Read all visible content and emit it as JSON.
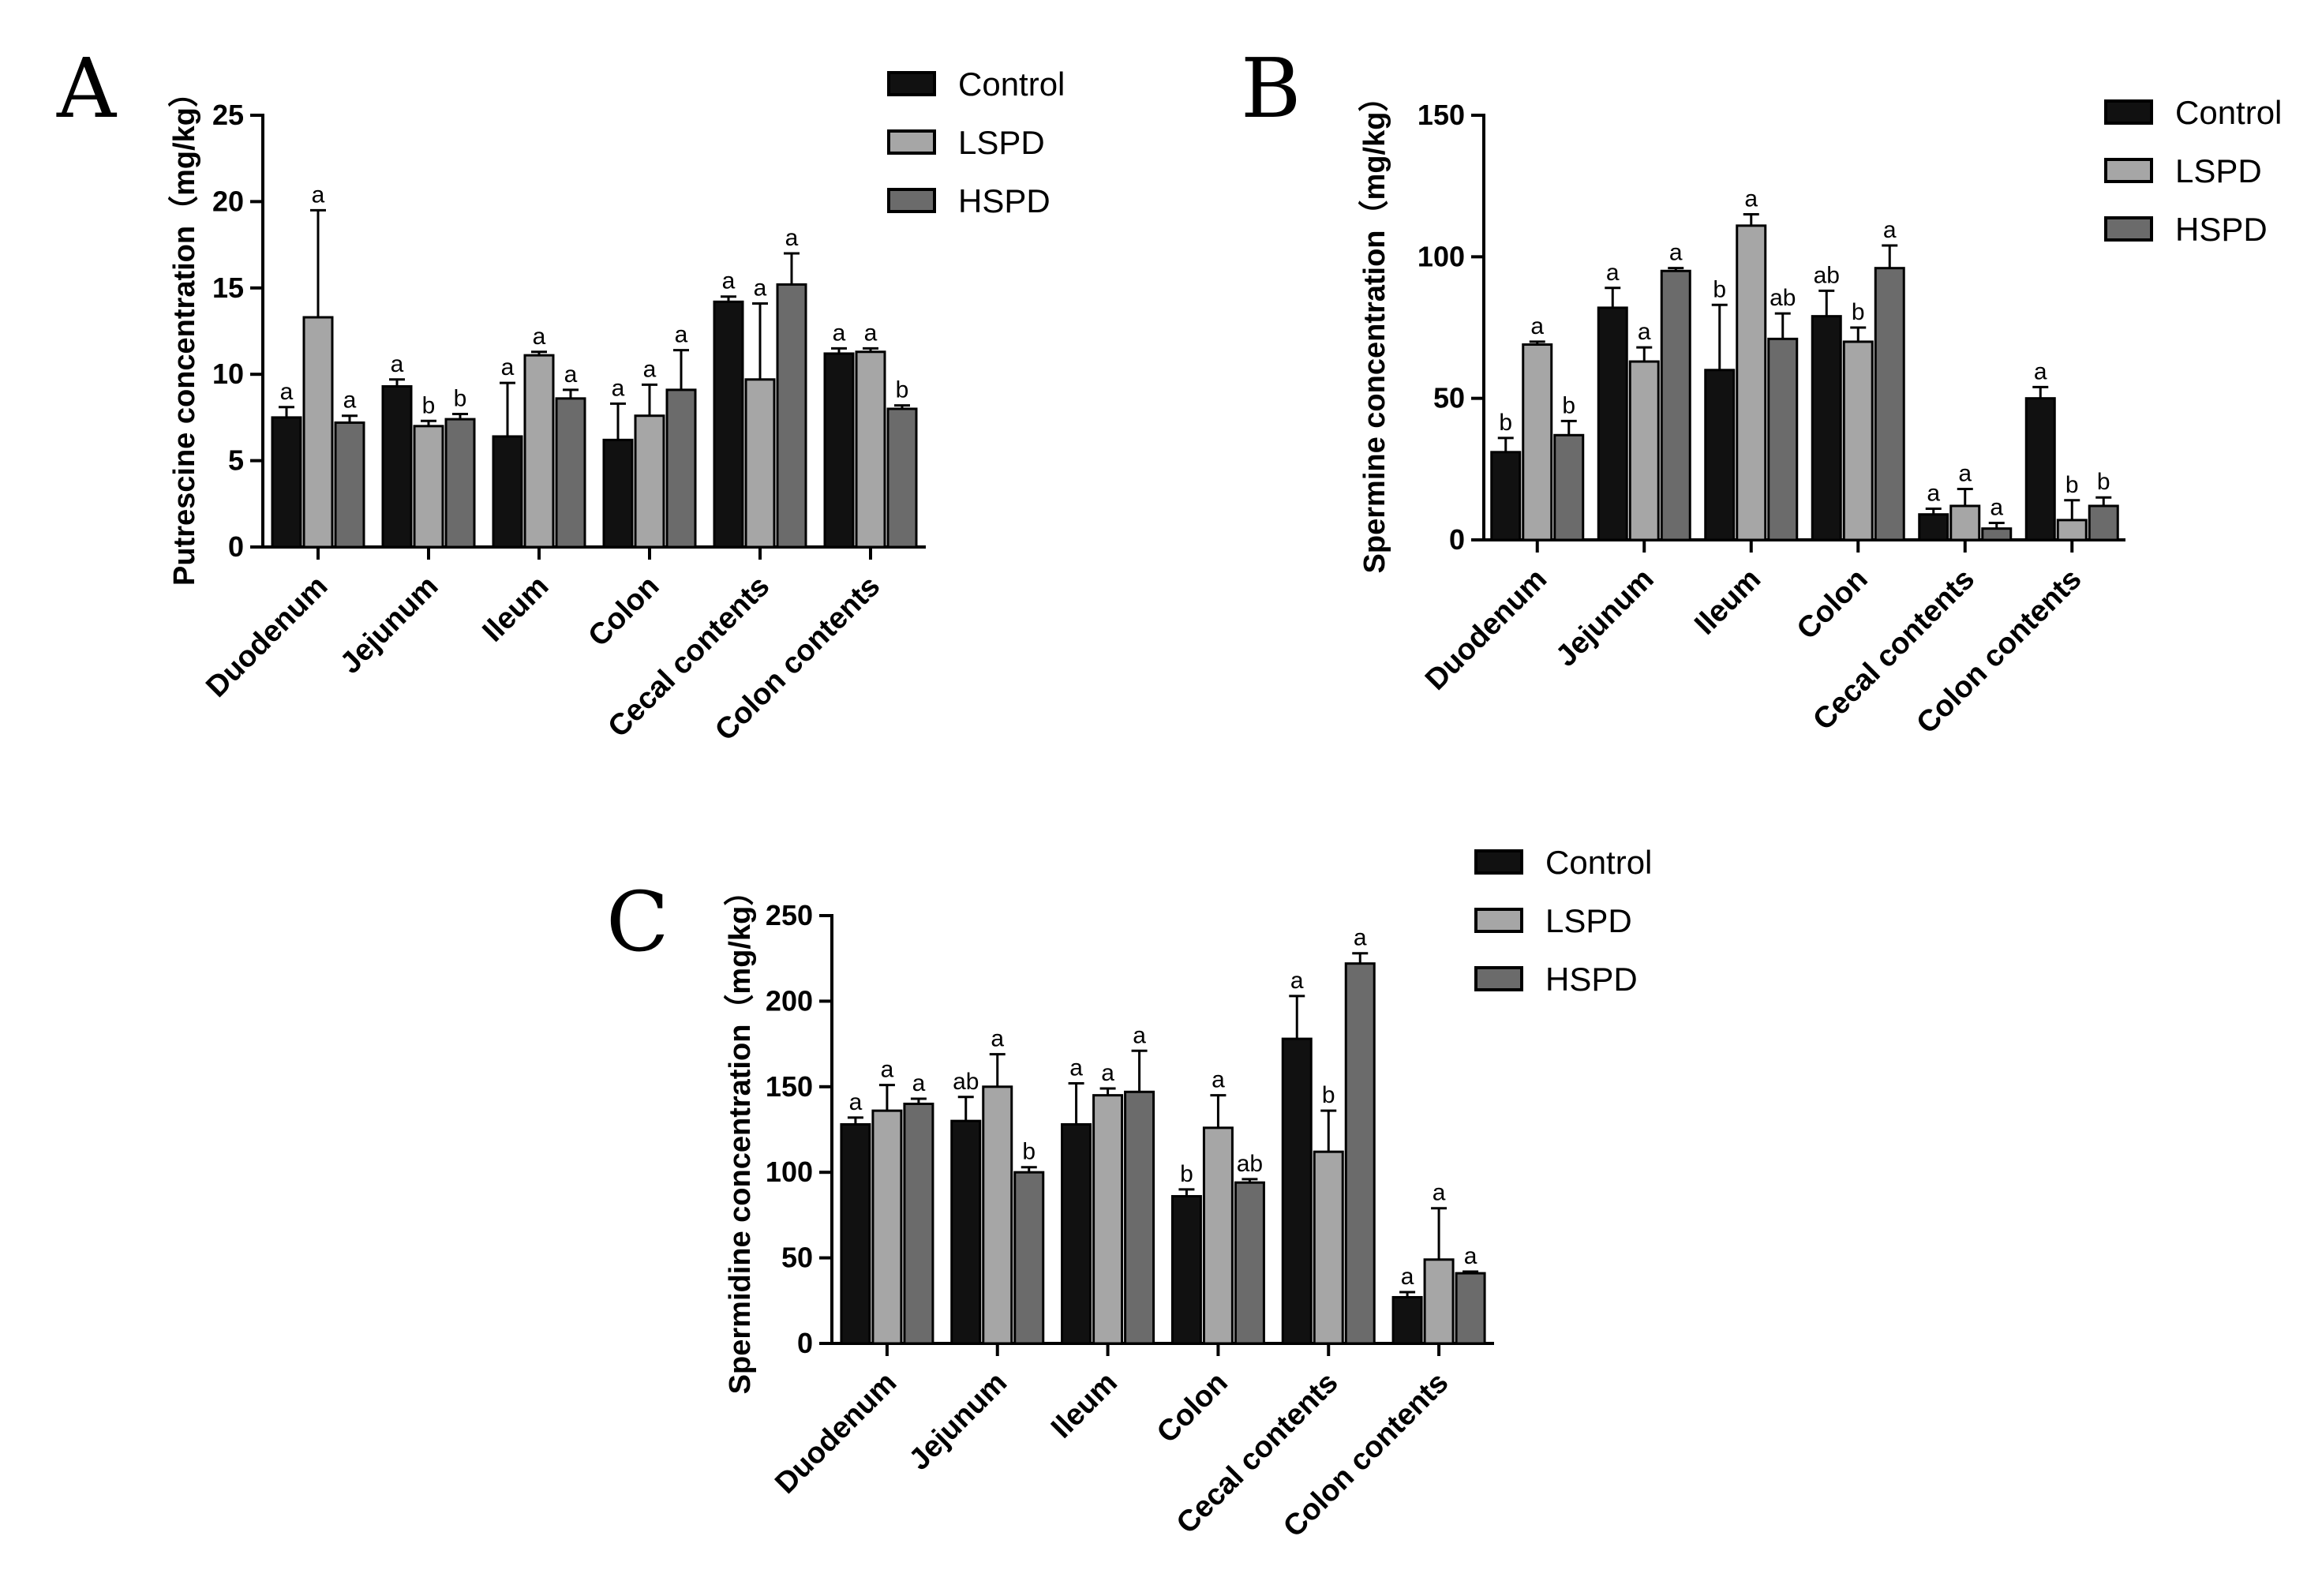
{
  "legend_labels": [
    "Control",
    "LSPD",
    "HSPD"
  ],
  "colors": {
    "Control": "#111111",
    "LSPD": "#a6a6a6",
    "HSPD": "#6b6b6b",
    "axis": "#000000"
  },
  "chart_data": [
    {
      "panel": "A",
      "type": "bar",
      "ylabel": "Putrescine concentration（mg/kg）",
      "ylim": [
        0,
        25
      ],
      "yticks": [
        0,
        5,
        10,
        15,
        20,
        25
      ],
      "categories": [
        "Duodenum",
        "Jejunum",
        "Ileum",
        "Colon",
        "Cecal contents",
        "Colon contents"
      ],
      "series": [
        {
          "name": "Control",
          "values": [
            7.5,
            9.3,
            6.4,
            6.2,
            14.2,
            11.2
          ],
          "errors": [
            0.6,
            0.4,
            3.1,
            2.1,
            0.3,
            0.3
          ],
          "labels": [
            "a",
            "a",
            "a",
            "a",
            "a",
            "a"
          ]
        },
        {
          "name": "LSPD",
          "values": [
            13.3,
            7.0,
            11.1,
            7.6,
            9.7,
            11.3
          ],
          "errors": [
            6.2,
            0.3,
            0.2,
            1.8,
            4.4,
            0.2
          ],
          "labels": [
            "a",
            "b",
            "a",
            "a",
            "a",
            "a"
          ]
        },
        {
          "name": "HSPD",
          "values": [
            7.2,
            7.4,
            8.6,
            9.1,
            15.2,
            8.0
          ],
          "errors": [
            0.4,
            0.3,
            0.5,
            2.3,
            1.8,
            0.2
          ],
          "labels": [
            "a",
            "b",
            "a",
            "a",
            "a",
            "b"
          ]
        }
      ]
    },
    {
      "panel": "B",
      "type": "bar",
      "ylabel": "Spermine concentration（mg/kg）",
      "ylim": [
        0,
        150
      ],
      "yticks": [
        0,
        50,
        100,
        150
      ],
      "categories": [
        "Duodenum",
        "Jejunum",
        "Ileum",
        "Colon",
        "Cecal contents",
        "Colon contents"
      ],
      "series": [
        {
          "name": "Control",
          "values": [
            31,
            82,
            60,
            79,
            9,
            50
          ],
          "errors": [
            5,
            7,
            23,
            9,
            2,
            4
          ],
          "labels": [
            "b",
            "a",
            "b",
            "ab",
            "a",
            "a"
          ]
        },
        {
          "name": "LSPD",
          "values": [
            69,
            63,
            111,
            70,
            12,
            7
          ],
          "errors": [
            1,
            5,
            4,
            5,
            6,
            7
          ],
          "labels": [
            "a",
            "a",
            "a",
            "b",
            "a",
            "b"
          ]
        },
        {
          "name": "HSPD",
          "values": [
            37,
            95,
            71,
            96,
            4,
            12
          ],
          "errors": [
            5,
            1,
            9,
            8,
            2,
            3
          ],
          "labels": [
            "b",
            "a",
            "ab",
            "a",
            "a",
            "b"
          ]
        }
      ]
    },
    {
      "panel": "C",
      "type": "bar",
      "ylabel": "Spermidine concentration（mg/kg）",
      "ylim": [
        0,
        250
      ],
      "yticks": [
        0,
        50,
        100,
        150,
        200,
        250
      ],
      "categories": [
        "Duodenum",
        "Jejunum",
        "Ileum",
        "Colon",
        "Cecal contents",
        "Colon contents"
      ],
      "series": [
        {
          "name": "Control",
          "values": [
            128,
            130,
            128,
            86,
            178,
            27
          ],
          "errors": [
            4,
            14,
            24,
            4,
            25,
            3
          ],
          "labels": [
            "a",
            "ab",
            "a",
            "b",
            "a",
            "a"
          ]
        },
        {
          "name": "LSPD",
          "values": [
            136,
            150,
            145,
            126,
            112,
            49
          ],
          "errors": [
            15,
            19,
            4,
            19,
            24,
            30
          ],
          "labels": [
            "a",
            "a",
            "a",
            "a",
            "b",
            "a"
          ]
        },
        {
          "name": "HSPD",
          "values": [
            140,
            100,
            147,
            94,
            222,
            41
          ],
          "errors": [
            3,
            3,
            24,
            2,
            6,
            1
          ],
          "labels": [
            "a",
            "b",
            "a",
            "ab",
            "a",
            "a"
          ]
        }
      ]
    }
  ]
}
